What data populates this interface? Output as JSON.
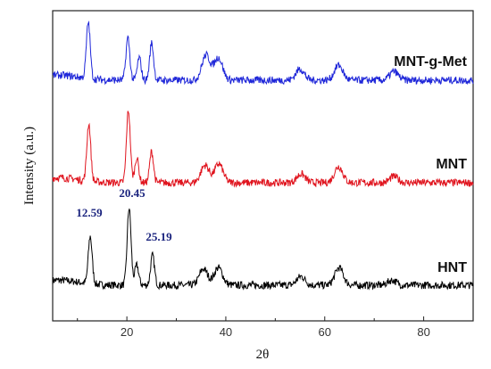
{
  "chart_data": {
    "type": "line",
    "xlabel": "2θ",
    "ylabel": "Intensity (a.u.)",
    "xlim": [
      5,
      90
    ],
    "xticks": [
      20,
      40,
      60,
      80
    ],
    "yticks_shown": false,
    "legend": "none",
    "series": [
      {
        "name": "HNT",
        "color": "#000000",
        "offset": 0,
        "peaks": [
          {
            "x": 12.59,
            "h": 0.38
          },
          {
            "x": 20.45,
            "h": 0.62
          },
          {
            "x": 22.0,
            "h": 0.16
          },
          {
            "x": 25.19,
            "h": 0.24
          },
          {
            "x": 35.5,
            "h": 0.13
          },
          {
            "x": 38.5,
            "h": 0.14
          },
          {
            "x": 55.2,
            "h": 0.07
          },
          {
            "x": 62.9,
            "h": 0.14
          },
          {
            "x": 73.6,
            "h": 0.04
          }
        ]
      },
      {
        "name": "MNT",
        "color": "#e0141e",
        "offset": 1,
        "peaks": [
          {
            "x": 12.3,
            "h": 0.46
          },
          {
            "x": 20.3,
            "h": 0.58
          },
          {
            "x": 22.0,
            "h": 0.2
          },
          {
            "x": 25.0,
            "h": 0.25
          },
          {
            "x": 35.8,
            "h": 0.14
          },
          {
            "x": 38.6,
            "h": 0.15
          },
          {
            "x": 55.2,
            "h": 0.07
          },
          {
            "x": 62.8,
            "h": 0.13
          },
          {
            "x": 74.0,
            "h": 0.05
          }
        ]
      },
      {
        "name": "MNT-g-Met",
        "color": "#1f27d9",
        "offset": 2,
        "peaks": [
          {
            "x": 12.2,
            "h": 0.45
          },
          {
            "x": 20.2,
            "h": 0.34
          },
          {
            "x": 22.5,
            "h": 0.18
          },
          {
            "x": 25.0,
            "h": 0.3
          },
          {
            "x": 36.0,
            "h": 0.2
          },
          {
            "x": 38.5,
            "h": 0.18
          },
          {
            "x": 55.0,
            "h": 0.09
          },
          {
            "x": 62.8,
            "h": 0.12
          },
          {
            "x": 74.0,
            "h": 0.07
          }
        ]
      }
    ],
    "annotations": [
      {
        "text": "12.59",
        "x": 12.59
      },
      {
        "text": "20.45",
        "x": 20.45
      },
      {
        "text": "25.19",
        "x": 25.19
      }
    ]
  }
}
